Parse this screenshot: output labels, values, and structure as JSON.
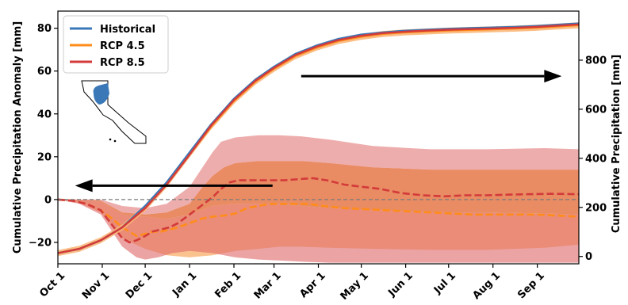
{
  "chart_data": {
    "type": "line",
    "x_categories": [
      "Oct 1",
      "Nov 1",
      "Dec 1",
      "Jan 1",
      "Feb 1",
      "Mar 1",
      "Apr 1",
      "May 1",
      "Jun 1",
      "Jul 1",
      "Aug 1",
      "Sep 1"
    ],
    "x_range_days": [
      0,
      364
    ],
    "ylabel_left": "Cumulative Precipitation Anomaly [mm]",
    "ylabel_right": "Cumulative Precipitation [mm]",
    "ylim_left": [
      -30,
      88
    ],
    "yticks_left": [
      -20,
      0,
      20,
      40,
      60,
      80
    ],
    "ylim_right": [
      -30,
      1000
    ],
    "yticks_right": [
      0,
      200,
      400,
      600,
      800
    ],
    "legend": {
      "placement": "top-left",
      "entries": [
        "Historical",
        "RCP 4.5",
        "RCP 8.5"
      ]
    },
    "colors": {
      "historical": "#3a78b8",
      "rcp45": "#ff8c1a",
      "rcp85": "#d33a3a",
      "rcp45_band": "#f9b77a",
      "rcp85_band": "#e06a6a",
      "zero_line": "#7a7a7a",
      "arrow": "#000000"
    },
    "cumulative_series_left_units": [
      {
        "name": "Historical",
        "points": [
          [
            0,
            -25
          ],
          [
            15,
            -23
          ],
          [
            30,
            -19
          ],
          [
            45,
            -13
          ],
          [
            61,
            -3
          ],
          [
            76,
            8
          ],
          [
            92,
            22
          ],
          [
            107,
            35
          ],
          [
            123,
            47
          ],
          [
            138,
            56
          ],
          [
            151,
            62
          ],
          [
            166,
            68
          ],
          [
            181,
            72
          ],
          [
            196,
            75
          ],
          [
            212,
            77
          ],
          [
            227,
            78
          ],
          [
            242,
            78.8
          ],
          [
            258,
            79.3
          ],
          [
            273,
            79.7
          ],
          [
            288,
            80
          ],
          [
            304,
            80.3
          ],
          [
            319,
            80.6
          ],
          [
            334,
            81
          ],
          [
            349,
            81.6
          ],
          [
            364,
            82.2
          ]
        ]
      },
      {
        "name": "RCP 4.5",
        "points": [
          [
            0,
            -25
          ],
          [
            15,
            -23
          ],
          [
            30,
            -19
          ],
          [
            45,
            -13
          ],
          [
            61,
            -4
          ],
          [
            76,
            7
          ],
          [
            92,
            21
          ],
          [
            107,
            34
          ],
          [
            123,
            46
          ],
          [
            138,
            55
          ],
          [
            151,
            61
          ],
          [
            166,
            67
          ],
          [
            181,
            71
          ],
          [
            196,
            74
          ],
          [
            212,
            76
          ],
          [
            227,
            77.3
          ],
          [
            242,
            78
          ],
          [
            258,
            78.5
          ],
          [
            273,
            78.9
          ],
          [
            288,
            79.2
          ],
          [
            304,
            79.5
          ],
          [
            319,
            79.8
          ],
          [
            334,
            80.2
          ],
          [
            349,
            80.8
          ],
          [
            364,
            81.4
          ]
        ]
      },
      {
        "name": "RCP 8.5",
        "points": [
          [
            0,
            -25
          ],
          [
            15,
            -23
          ],
          [
            30,
            -19
          ],
          [
            45,
            -13
          ],
          [
            61,
            -4
          ],
          [
            76,
            7
          ],
          [
            92,
            21
          ],
          [
            107,
            34.5
          ],
          [
            123,
            46.5
          ],
          [
            138,
            55.5
          ],
          [
            151,
            61.5
          ],
          [
            166,
            67.5
          ],
          [
            181,
            71.5
          ],
          [
            196,
            74.5
          ],
          [
            212,
            76.5
          ],
          [
            227,
            77.7
          ],
          [
            242,
            78.4
          ],
          [
            258,
            78.9
          ],
          [
            273,
            79.3
          ],
          [
            288,
            79.6
          ],
          [
            304,
            79.9
          ],
          [
            319,
            80.2
          ],
          [
            334,
            80.6
          ],
          [
            349,
            81.2
          ],
          [
            364,
            81.8
          ]
        ]
      }
    ],
    "anomaly_series": [
      {
        "name": "RCP 4.5",
        "points": [
          [
            0,
            0
          ],
          [
            10,
            -0.5
          ],
          [
            20,
            -2
          ],
          [
            30,
            -5
          ],
          [
            38,
            -9
          ],
          [
            45,
            -13
          ],
          [
            50,
            -15
          ],
          [
            55,
            -17
          ],
          [
            61,
            -16
          ],
          [
            66,
            -15
          ],
          [
            72,
            -15
          ],
          [
            78,
            -14
          ],
          [
            84,
            -13
          ],
          [
            92,
            -11
          ],
          [
            100,
            -9
          ],
          [
            108,
            -8
          ],
          [
            116,
            -7.5
          ],
          [
            124,
            -6.5
          ],
          [
            132,
            -4
          ],
          [
            140,
            -3
          ],
          [
            148,
            -2
          ],
          [
            155,
            -2
          ],
          [
            165,
            -2
          ],
          [
            175,
            -2
          ],
          [
            185,
            -3
          ],
          [
            200,
            -4
          ],
          [
            215,
            -4.5
          ],
          [
            230,
            -5
          ],
          [
            245,
            -5.5
          ],
          [
            260,
            -6
          ],
          [
            275,
            -6.5
          ],
          [
            290,
            -7
          ],
          [
            305,
            -7
          ],
          [
            320,
            -7
          ],
          [
            335,
            -7
          ],
          [
            350,
            -7.5
          ],
          [
            364,
            -8
          ]
        ]
      },
      {
        "name": "RCP 8.5",
        "points": [
          [
            0,
            0
          ],
          [
            10,
            -0.5
          ],
          [
            20,
            -2
          ],
          [
            30,
            -5
          ],
          [
            38,
            -12
          ],
          [
            45,
            -18
          ],
          [
            50,
            -20
          ],
          [
            55,
            -19
          ],
          [
            61,
            -17
          ],
          [
            66,
            -15
          ],
          [
            72,
            -14
          ],
          [
            78,
            -13
          ],
          [
            84,
            -11
          ],
          [
            92,
            -7
          ],
          [
            100,
            -3
          ],
          [
            108,
            1
          ],
          [
            114,
            5
          ],
          [
            120,
            8
          ],
          [
            126,
            9
          ],
          [
            132,
            9
          ],
          [
            140,
            9
          ],
          [
            148,
            9
          ],
          [
            158,
            9
          ],
          [
            168,
            9.5
          ],
          [
            178,
            10
          ],
          [
            188,
            9
          ],
          [
            200,
            7
          ],
          [
            212,
            6
          ],
          [
            225,
            5
          ],
          [
            240,
            3
          ],
          [
            255,
            2
          ],
          [
            270,
            1.5
          ],
          [
            285,
            2
          ],
          [
            300,
            2
          ],
          [
            315,
            2.3
          ],
          [
            330,
            2.5
          ],
          [
            345,
            2.7
          ],
          [
            364,
            2.5
          ]
        ]
      }
    ],
    "anomaly_bands": [
      {
        "name": "RCP 4.5",
        "upper": [
          [
            0,
            0
          ],
          [
            15,
            0
          ],
          [
            30,
            -1
          ],
          [
            45,
            -7
          ],
          [
            61,
            -8
          ],
          [
            76,
            -9
          ],
          [
            92,
            -7
          ],
          [
            108,
            -3
          ],
          [
            124,
            -2
          ],
          [
            140,
            -2
          ],
          [
            155,
            -2
          ],
          [
            170,
            -3
          ],
          [
            190,
            -4
          ],
          [
            220,
            -5
          ],
          [
            260,
            -6
          ],
          [
            300,
            -6
          ],
          [
            340,
            -6.5
          ],
          [
            364,
            -7
          ]
        ],
        "lower": [
          [
            0,
            0
          ],
          [
            15,
            -1.5
          ],
          [
            30,
            -6
          ],
          [
            45,
            -18
          ],
          [
            61,
            -23
          ],
          [
            76,
            -26
          ],
          [
            92,
            -27
          ],
          [
            108,
            -26
          ],
          [
            124,
            -24
          ],
          [
            140,
            -23
          ],
          [
            155,
            -22
          ],
          [
            170,
            -22
          ],
          [
            190,
            -22.5
          ],
          [
            220,
            -23
          ],
          [
            260,
            -23.5
          ],
          [
            300,
            -23.5
          ],
          [
            340,
            -22.5
          ],
          [
            364,
            -21
          ]
        ]
      },
      {
        "name": "RCP 8.5 (lower)",
        "upper": [
          [
            0,
            0
          ],
          [
            15,
            0
          ],
          [
            30,
            -1
          ],
          [
            45,
            -7
          ],
          [
            61,
            -8
          ],
          [
            76,
            -9
          ],
          [
            92,
            -7
          ],
          [
            108,
            -3
          ],
          [
            124,
            -2
          ],
          [
            140,
            -2
          ],
          [
            155,
            -2
          ],
          [
            170,
            -3
          ],
          [
            190,
            -4
          ],
          [
            220,
            -5
          ],
          [
            260,
            -6
          ],
          [
            300,
            -6
          ],
          [
            340,
            -6.5
          ],
          [
            364,
            -7
          ]
        ],
        "lower": [
          [
            0,
            0
          ],
          [
            15,
            -2
          ],
          [
            30,
            -7
          ],
          [
            45,
            -22
          ],
          [
            55,
            -27
          ],
          [
            61,
            -28
          ],
          [
            70,
            -27
          ],
          [
            80,
            -25
          ],
          [
            92,
            -24
          ],
          [
            108,
            -25
          ],
          [
            124,
            -27
          ],
          [
            140,
            -28
          ],
          [
            155,
            -28.5
          ],
          [
            170,
            -29
          ],
          [
            190,
            -29.5
          ],
          [
            220,
            -29.5
          ],
          [
            260,
            -29.5
          ],
          [
            300,
            -29.5
          ],
          [
            340,
            -29.5
          ],
          [
            364,
            -29.5
          ]
        ]
      },
      {
        "name": "Overlap",
        "upper": [
          [
            0,
            0
          ],
          [
            15,
            0
          ],
          [
            30,
            -0.5
          ],
          [
            45,
            -6
          ],
          [
            61,
            -7
          ],
          [
            76,
            -6
          ],
          [
            92,
            -2
          ],
          [
            100,
            5
          ],
          [
            108,
            11
          ],
          [
            116,
            15
          ],
          [
            124,
            17
          ],
          [
            140,
            18
          ],
          [
            155,
            18
          ],
          [
            170,
            18
          ],
          [
            190,
            17
          ],
          [
            220,
            15
          ],
          [
            260,
            14
          ],
          [
            300,
            14
          ],
          [
            340,
            14
          ],
          [
            364,
            14
          ]
        ],
        "lower": [
          [
            0,
            0
          ],
          [
            15,
            0
          ],
          [
            30,
            -1
          ],
          [
            45,
            -7
          ],
          [
            61,
            -8
          ],
          [
            76,
            -9
          ],
          [
            92,
            -7
          ],
          [
            108,
            -3
          ],
          [
            124,
            -2
          ],
          [
            140,
            -2
          ],
          [
            155,
            -2
          ],
          [
            170,
            -3
          ],
          [
            190,
            -4
          ],
          [
            220,
            -5
          ],
          [
            260,
            -6
          ],
          [
            300,
            -6
          ],
          [
            340,
            -6.5
          ],
          [
            364,
            -7
          ]
        ]
      },
      {
        "name": "RCP 8.5 (upper)",
        "upper": [
          [
            0,
            0
          ],
          [
            15,
            0
          ],
          [
            30,
            0
          ],
          [
            45,
            -3
          ],
          [
            61,
            -4
          ],
          [
            76,
            -2
          ],
          [
            92,
            6
          ],
          [
            100,
            14
          ],
          [
            108,
            22
          ],
          [
            114,
            27
          ],
          [
            124,
            29
          ],
          [
            140,
            30
          ],
          [
            155,
            30
          ],
          [
            170,
            29.5
          ],
          [
            190,
            28
          ],
          [
            220,
            25
          ],
          [
            260,
            23.5
          ],
          [
            300,
            23.5
          ],
          [
            340,
            24
          ],
          [
            364,
            23.5
          ]
        ],
        "lower": [
          [
            0,
            0
          ],
          [
            15,
            0
          ],
          [
            30,
            -0.5
          ],
          [
            45,
            -6
          ],
          [
            61,
            -7
          ],
          [
            76,
            -6
          ],
          [
            92,
            -2
          ],
          [
            100,
            5
          ],
          [
            108,
            11
          ],
          [
            116,
            15
          ],
          [
            124,
            17
          ],
          [
            140,
            18
          ],
          [
            155,
            18
          ],
          [
            170,
            18
          ],
          [
            190,
            17
          ],
          [
            220,
            15
          ],
          [
            260,
            14
          ],
          [
            300,
            14
          ],
          [
            340,
            14
          ],
          [
            364,
            14
          ]
        ]
      }
    ],
    "zero_line": 0,
    "arrows": [
      {
        "points_to": "left axis",
        "from_day": 150,
        "to_day": 12,
        "y_left": 6.5
      },
      {
        "points_to": "right axis",
        "from_day": 170,
        "to_day": 352,
        "y_left": 57.6
      }
    ],
    "inset_map": "California"
  }
}
